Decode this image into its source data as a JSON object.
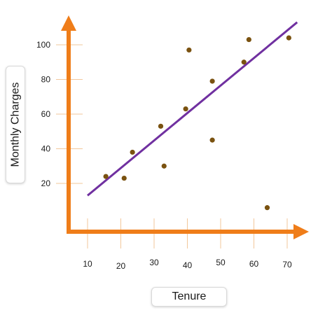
{
  "chart_data": {
    "type": "scatter",
    "title": "",
    "xlabel": "Tenure",
    "ylabel": "Monthly Charges",
    "x_ticks": [
      {
        "value": 10,
        "label": "10"
      },
      {
        "value": 20,
        "label": "20"
      },
      {
        "value": 30,
        "label": "30"
      },
      {
        "value": 40,
        "label": "40"
      },
      {
        "value": 50,
        "label": "50"
      },
      {
        "value": 60,
        "label": "60"
      },
      {
        "value": 70,
        "label": "70"
      }
    ],
    "y_ticks": [
      {
        "value": 20,
        "label": "20"
      },
      {
        "value": 40,
        "label": "40"
      },
      {
        "value": 60,
        "label": "60"
      },
      {
        "value": 80,
        "label": "80"
      },
      {
        "value": 100,
        "label": "100"
      }
    ],
    "series": [
      {
        "points": [
          {
            "x": 15.5,
            "y": 24
          },
          {
            "x": 21,
            "y": 23
          },
          {
            "x": 23.5,
            "y": 38
          },
          {
            "x": 32,
            "y": 53
          },
          {
            "x": 33,
            "y": 30
          },
          {
            "x": 39.5,
            "y": 63
          },
          {
            "x": 40.5,
            "y": 97
          },
          {
            "x": 47.5,
            "y": 79
          },
          {
            "x": 47.5,
            "y": 45
          },
          {
            "x": 57,
            "y": 90
          },
          {
            "x": 58.5,
            "y": 103
          },
          {
            "x": 64,
            "y": 6
          },
          {
            "x": 70.5,
            "y": 104
          }
        ]
      }
    ],
    "trendline": {
      "x1": 10,
      "y1": 13,
      "x2": 73,
      "y2": 113
    },
    "grid": false,
    "colors": {
      "axis": "#ef7d19",
      "tick": "#f2c79b",
      "point": "#7a5210",
      "trendline": "#7030a0"
    }
  }
}
